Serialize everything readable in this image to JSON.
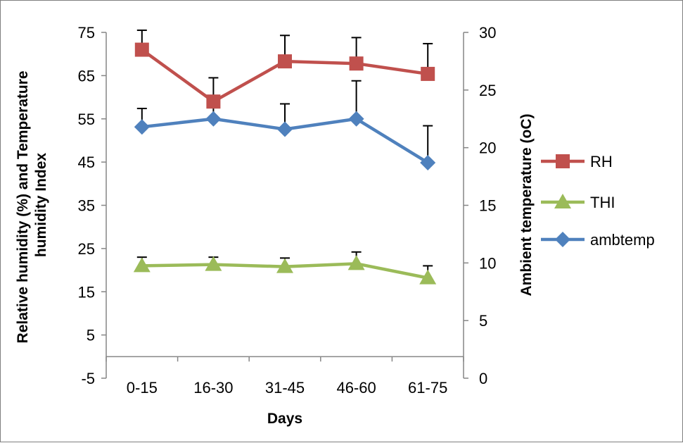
{
  "chart_data": {
    "type": "line",
    "title": "",
    "xlabel": "Days",
    "ylabel_left": "Relative humidity (%) and Temperature humidity Index",
    "ylabel_left_lines": [
      "Relative humidity (%) and Temperature",
      "humidity Index"
    ],
    "ylabel_right": "Ambient temperature (oC)",
    "categories": [
      "0-15",
      "16-30",
      "31-45",
      "46-60",
      "61-75"
    ],
    "ylim_left": [
      -5,
      75
    ],
    "yticks_left": [
      -5,
      5,
      15,
      25,
      35,
      45,
      55,
      65,
      75
    ],
    "ylim_right": [
      0,
      30
    ],
    "yticks_right": [
      0,
      5,
      10,
      15,
      20,
      25,
      30
    ],
    "legend_position": "right",
    "series": [
      {
        "name": "RH",
        "axis": "left",
        "color": "#c0504d",
        "marker": "square",
        "values": [
          71,
          59,
          68.3,
          67.8,
          65.4
        ],
        "error": [
          4.5,
          5.5,
          6,
          6,
          7
        ]
      },
      {
        "name": "THI",
        "axis": "left",
        "color": "#9bbb59",
        "marker": "triangle",
        "values": [
          21,
          21.3,
          20.8,
          21.5,
          18.2
        ],
        "error": [
          2,
          1.7,
          2,
          2.7,
          2.8
        ]
      },
      {
        "name": "ambtemp",
        "axis": "right",
        "color": "#4f81bd",
        "marker": "diamond",
        "values": [
          21.8,
          22.5,
          21.6,
          22.5,
          18.7
        ],
        "error": [
          1.6,
          2,
          2.2,
          3.3,
          3.2
        ]
      }
    ]
  }
}
